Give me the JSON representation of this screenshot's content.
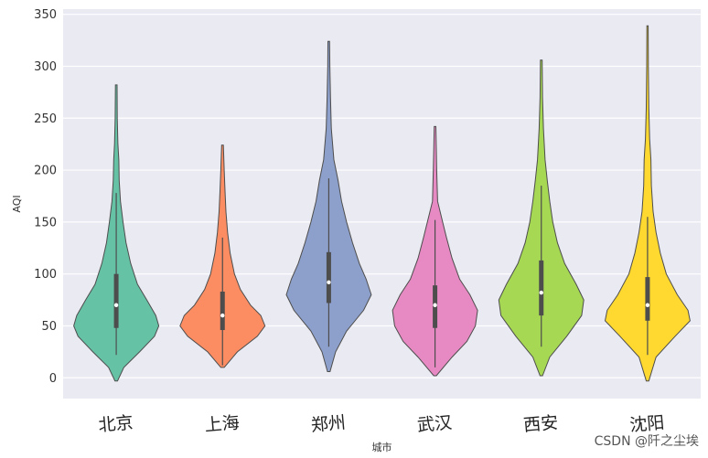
{
  "chart_data": {
    "type": "violin",
    "title": "",
    "xlabel": "城市",
    "ylabel": "AQI",
    "ylim": [
      -20,
      355
    ],
    "yticks": [
      "0",
      "50",
      "100",
      "150",
      "200",
      "250",
      "300",
      "350"
    ],
    "grid": true,
    "categories": [
      "北京",
      "上海",
      "郑州",
      "武汉",
      "西安",
      "沈阳"
    ],
    "colors": [
      "#66c2a5",
      "#fc8d62",
      "#8da0cb",
      "#e78ac3",
      "#a6d854",
      "#ffd92f"
    ],
    "series": [
      {
        "min": -3,
        "max": 282,
        "q1": 48,
        "median": 70,
        "q3": 100,
        "whisker_low": 22,
        "whisker_high": 178,
        "profile": [
          [
            -3,
            0.03
          ],
          [
            10,
            0.18
          ],
          [
            25,
            0.55
          ],
          [
            40,
            0.9
          ],
          [
            50,
            1.0
          ],
          [
            60,
            0.93
          ],
          [
            75,
            0.72
          ],
          [
            90,
            0.5
          ],
          [
            110,
            0.34
          ],
          [
            130,
            0.23
          ],
          [
            150,
            0.16
          ],
          [
            170,
            0.1
          ],
          [
            190,
            0.07
          ],
          [
            210,
            0.06
          ],
          [
            225,
            0.04
          ],
          [
            250,
            0.025
          ],
          [
            282,
            0.02
          ]
        ]
      },
      {
        "min": 10,
        "max": 224,
        "q1": 46,
        "median": 60,
        "q3": 83,
        "whisker_low": 12,
        "whisker_high": 135,
        "profile": [
          [
            10,
            0.04
          ],
          [
            25,
            0.35
          ],
          [
            40,
            0.82
          ],
          [
            50,
            1.0
          ],
          [
            60,
            0.9
          ],
          [
            70,
            0.66
          ],
          [
            85,
            0.42
          ],
          [
            100,
            0.28
          ],
          [
            120,
            0.18
          ],
          [
            140,
            0.12
          ],
          [
            160,
            0.08
          ],
          [
            180,
            0.06
          ],
          [
            200,
            0.04
          ],
          [
            224,
            0.02
          ]
        ]
      },
      {
        "min": 6,
        "max": 324,
        "q1": 72,
        "median": 92,
        "q3": 121,
        "whisker_low": 30,
        "whisker_high": 192,
        "profile": [
          [
            6,
            0.03
          ],
          [
            25,
            0.16
          ],
          [
            45,
            0.42
          ],
          [
            65,
            0.82
          ],
          [
            80,
            1.0
          ],
          [
            95,
            0.88
          ],
          [
            110,
            0.72
          ],
          [
            130,
            0.56
          ],
          [
            150,
            0.42
          ],
          [
            170,
            0.3
          ],
          [
            190,
            0.22
          ],
          [
            210,
            0.12
          ],
          [
            240,
            0.06
          ],
          [
            270,
            0.04
          ],
          [
            300,
            0.025
          ],
          [
            324,
            0.02
          ]
        ]
      },
      {
        "min": 2,
        "max": 242,
        "q1": 48,
        "median": 70,
        "q3": 89,
        "whisker_low": 10,
        "whisker_high": 152,
        "profile": [
          [
            2,
            0.03
          ],
          [
            20,
            0.4
          ],
          [
            35,
            0.75
          ],
          [
            50,
            0.95
          ],
          [
            65,
            1.0
          ],
          [
            80,
            0.82
          ],
          [
            95,
            0.58
          ],
          [
            115,
            0.4
          ],
          [
            135,
            0.27
          ],
          [
            150,
            0.18
          ],
          [
            170,
            0.06
          ],
          [
            200,
            0.04
          ],
          [
            220,
            0.03
          ],
          [
            242,
            0.02
          ]
        ]
      },
      {
        "min": 2,
        "max": 306,
        "q1": 60,
        "median": 82,
        "q3": 113,
        "whisker_low": 30,
        "whisker_high": 185,
        "profile": [
          [
            2,
            0.03
          ],
          [
            20,
            0.2
          ],
          [
            40,
            0.6
          ],
          [
            60,
            0.95
          ],
          [
            75,
            1.0
          ],
          [
            90,
            0.82
          ],
          [
            110,
            0.55
          ],
          [
            130,
            0.38
          ],
          [
            150,
            0.27
          ],
          [
            170,
            0.2
          ],
          [
            190,
            0.14
          ],
          [
            210,
            0.09
          ],
          [
            240,
            0.05
          ],
          [
            270,
            0.03
          ],
          [
            306,
            0.02
          ]
        ]
      },
      {
        "min": -3,
        "max": 339,
        "q1": 55,
        "median": 70,
        "q3": 97,
        "whisker_low": 22,
        "whisker_high": 155,
        "profile": [
          [
            -3,
            0.03
          ],
          [
            20,
            0.2
          ],
          [
            40,
            0.65
          ],
          [
            55,
            1.0
          ],
          [
            65,
            0.95
          ],
          [
            80,
            0.7
          ],
          [
            100,
            0.44
          ],
          [
            120,
            0.3
          ],
          [
            140,
            0.2
          ],
          [
            160,
            0.13
          ],
          [
            185,
            0.09
          ],
          [
            210,
            0.08
          ],
          [
            230,
            0.05
          ],
          [
            260,
            0.03
          ],
          [
            300,
            0.02
          ],
          [
            339,
            0.015
          ]
        ]
      }
    ]
  },
  "watermark": "CSDN @阡之尘埃"
}
